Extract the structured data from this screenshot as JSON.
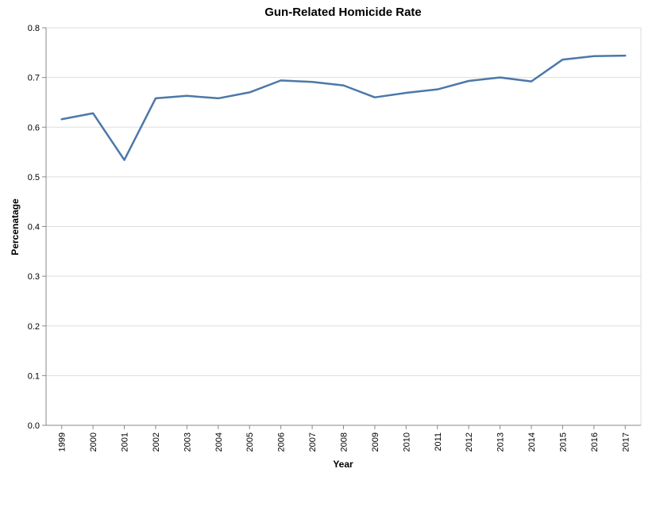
{
  "chart_data": {
    "type": "line",
    "title": "Gun-Related Homicide Rate",
    "xlabel": "Year",
    "ylabel": "Percenatage",
    "ylim": [
      0,
      0.8
    ],
    "yticks": [
      "0.0",
      "0.1",
      "0.2",
      "0.3",
      "0.4",
      "0.5",
      "0.6",
      "0.7",
      "0.8"
    ],
    "grid": true,
    "x": [
      "1999",
      "2000",
      "2001",
      "2002",
      "2003",
      "2004",
      "2005",
      "2006",
      "2007",
      "2008",
      "2009",
      "2010",
      "2011",
      "2012",
      "2013",
      "2014",
      "2015",
      "2016",
      "2017"
    ],
    "series": [
      {
        "values": [
          0.616,
          0.628,
          0.534,
          0.658,
          0.663,
          0.658,
          0.67,
          0.694,
          0.691,
          0.684,
          0.66,
          0.669,
          0.676,
          0.693,
          0.7,
          0.692,
          0.736,
          0.743,
          0.744
        ],
        "color": "#4c78a8"
      }
    ]
  }
}
